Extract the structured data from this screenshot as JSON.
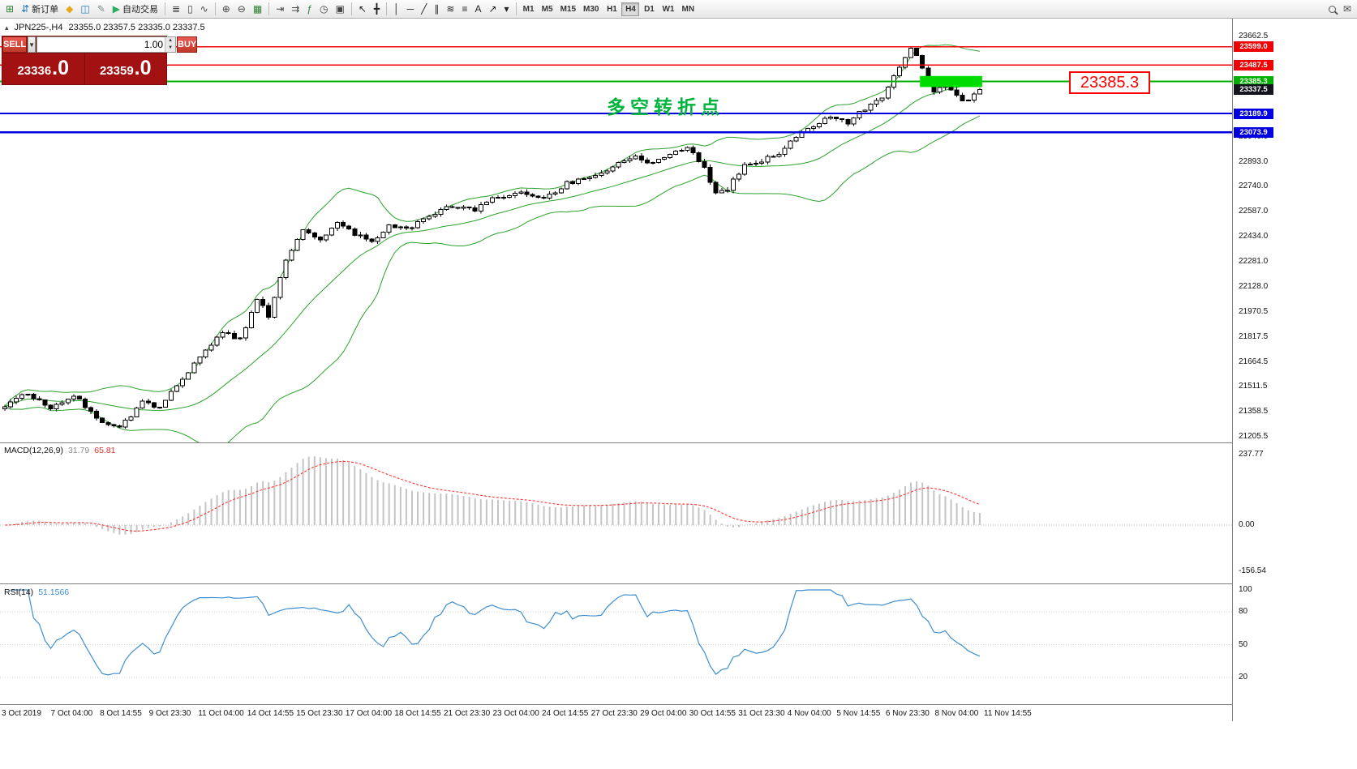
{
  "chart": {
    "symbol_period": "JPN225-,H4",
    "ohlc_text": "23355.0 23357.5 23335.0 23337.5",
    "collapse_icon": "▴",
    "annotation": {
      "text": "多空转折点",
      "color": "#00b43c"
    },
    "callout": {
      "text": "23385.3",
      "color": "#ff0000"
    }
  },
  "trade_panel": {
    "sell_label": "SELL",
    "buy_label": "BUY",
    "volume": "1.00",
    "sell_price_main": "23336",
    "sell_price_big": ".0",
    "buy_price_main": "23359",
    "buy_price_big": ".0"
  },
  "toolbar": {
    "items": [
      {
        "type": "btn",
        "name": "new-chart-button",
        "glyph": "⊞",
        "color": "#2e7d32"
      },
      {
        "type": "btn",
        "name": "new-order-button",
        "glyph": "⇵",
        "color": "#1f77b4",
        "label": "新订单"
      },
      {
        "type": "btn",
        "name": "favorites-button",
        "glyph": "◆",
        "color": "#e6a817"
      },
      {
        "type": "btn",
        "name": "terminal-button",
        "glyph": "◫",
        "color": "#2980b9"
      },
      {
        "type": "btn",
        "name": "metaeditor-button",
        "glyph": "✎",
        "color": "#7f8c8d"
      },
      {
        "type": "btn",
        "name": "autotrading-button",
        "glyph": "▶",
        "color": "#27ae60",
        "label": "自动交易"
      },
      {
        "type": "sep"
      },
      {
        "type": "btn",
        "name": "bar-chart-button",
        "glyph": "≣",
        "color": "#444"
      },
      {
        "type": "btn",
        "name": "candlestick-button",
        "glyph": "▯",
        "color": "#444"
      },
      {
        "type": "btn",
        "name": "line-chart-button",
        "glyph": "∿",
        "color": "#444"
      },
      {
        "type": "sep"
      },
      {
        "type": "btn",
        "name": "zoom-in-button",
        "glyph": "⊕",
        "color": "#444"
      },
      {
        "type": "btn",
        "name": "zoom-out-button",
        "glyph": "⊖",
        "color": "#444"
      },
      {
        "type": "btn",
        "name": "tile-windows-button",
        "glyph": "▦",
        "color": "#2e7d32"
      },
      {
        "type": "sep"
      },
      {
        "type": "btn",
        "name": "chart-shift-button",
        "glyph": "⇥",
        "color": "#444"
      },
      {
        "type": "btn",
        "name": "auto-scroll-button",
        "glyph": "⇉",
        "color": "#444"
      },
      {
        "type": "btn",
        "name": "indicators-button",
        "glyph": "ƒ",
        "color": "#2e7d32"
      },
      {
        "type": "btn",
        "name": "periods-button",
        "glyph": "◷",
        "color": "#444"
      },
      {
        "type": "btn",
        "name": "templates-button",
        "glyph": "▣",
        "color": "#444"
      },
      {
        "type": "sep"
      },
      {
        "type": "btn",
        "name": "cursor-button",
        "glyph": "↖",
        "color": "#222"
      },
      {
        "type": "btn",
        "name": "crosshair-button",
        "glyph": "╋",
        "color": "#222"
      },
      {
        "type": "sep"
      },
      {
        "type": "btn",
        "name": "vertical-line-button",
        "glyph": "│",
        "color": "#222"
      },
      {
        "type": "btn",
        "name": "horizontal-line-button",
        "glyph": "─",
        "color": "#222"
      },
      {
        "type": "btn",
        "name": "trendline-button",
        "glyph": "╱",
        "color": "#222"
      },
      {
        "type": "btn",
        "name": "channel-button",
        "glyph": "∥",
        "color": "#222"
      },
      {
        "type": "btn",
        "name": "fibonacci-button",
        "glyph": "≋",
        "color": "#222"
      },
      {
        "type": "btn",
        "name": "shapes-button",
        "glyph": "≡",
        "color": "#222"
      },
      {
        "type": "btn",
        "name": "text-button",
        "glyph": "A",
        "color": "#222"
      },
      {
        "type": "btn",
        "name": "arrows-button",
        "glyph": "↗",
        "color": "#222"
      },
      {
        "type": "btn",
        "name": "objects-dropdown",
        "glyph": "▾",
        "color": "#222"
      },
      {
        "type": "sep"
      },
      {
        "type": "tf",
        "name": "tf-m1",
        "label": "M1"
      },
      {
        "type": "tf",
        "name": "tf-m5",
        "label": "M5"
      },
      {
        "type": "tf",
        "name": "tf-m15",
        "label": "M15"
      },
      {
        "type": "tf",
        "name": "tf-m30",
        "label": "M30"
      },
      {
        "type": "tf",
        "name": "tf-h1",
        "label": "H1"
      },
      {
        "type": "tf",
        "name": "tf-h4",
        "label": "H4",
        "active": true
      },
      {
        "type": "tf",
        "name": "tf-d1",
        "label": "D1"
      },
      {
        "type": "tf",
        "name": "tf-w1",
        "label": "W1"
      },
      {
        "type": "tf",
        "name": "tf-mn",
        "label": "MN"
      }
    ],
    "right_items": [
      {
        "type": "btn",
        "name": "search-button",
        "glyph": "MAG",
        "color": "#444"
      },
      {
        "type": "btn",
        "name": "chat-button",
        "glyph": "✉",
        "color": "#444"
      }
    ]
  },
  "chart_data": {
    "type": "candlestick",
    "symbol": "JPN225-",
    "timeframe": "H4",
    "current_bar": {
      "open": 23355.0,
      "high": 23357.5,
      "low": 23335.0,
      "close": 23337.5
    },
    "num_candles": 171,
    "price_axis": {
      "min": 21205.5,
      "max": 23662.5,
      "tick_labels": [
        "23662.5",
        "23046.0",
        "22893.0",
        "22740.0",
        "22587.0",
        "22434.0",
        "22281.0",
        "22128.0",
        "21970.5",
        "21817.5",
        "21664.5",
        "21511.5",
        "21358.5",
        "21205.5"
      ]
    },
    "current_price": {
      "value": 23337.5,
      "label": "23337.5",
      "badge_bg": "#14141e"
    },
    "levels": [
      {
        "price": 23599.0,
        "color": "#f00000",
        "width": 1.4,
        "badge": "23599.0"
      },
      {
        "price": 23487.5,
        "color": "#f00000",
        "width": 1.4,
        "badge": "23487.5"
      },
      {
        "price": 23385.3,
        "color": "#00b000",
        "width": 2,
        "badge": "23385.3"
      },
      {
        "price": 23189.9,
        "color": "#0000e0",
        "width": 2.4,
        "badge": "23189.9"
      },
      {
        "price": 23073.9,
        "color": "#0000e0",
        "width": 2.4,
        "badge": "23073.9"
      }
    ],
    "zone": {
      "start_index": 160,
      "end_index": 171,
      "price_top": 23420,
      "price_bottom": 23352,
      "color": "#00dc00"
    },
    "bollinger": {
      "period": 20,
      "deviation": 2,
      "color": "#2aa22a"
    },
    "macd": {
      "label": "MACD(12,26,9)",
      "value": "31.79",
      "signal": "65.81",
      "axis_labels": [
        "237.77",
        "0.00",
        "-156.54"
      ],
      "bar_color": "#c4c4c4",
      "signal_color": "#ff3434"
    },
    "rsi": {
      "label": "RSI(14)",
      "value": "51.1566",
      "axis_labels": [
        "100",
        "80",
        "50",
        "20"
      ],
      "level_lines": [
        80,
        50,
        20
      ],
      "line_color": "#3e8ed0"
    },
    "anchors": {
      "indices": [
        0,
        4,
        8,
        12,
        16,
        20,
        24,
        27,
        30,
        34,
        38,
        41,
        44,
        46,
        49,
        52,
        55,
        58,
        61,
        64,
        67,
        70,
        74,
        78,
        82,
        86,
        90,
        94,
        98,
        102,
        106,
        110,
        113,
        116,
        119,
        122,
        124,
        126,
        129,
        132,
        135,
        138,
        141,
        144,
        147,
        150,
        153,
        156,
        158,
        160,
        162,
        164,
        166,
        168,
        170
      ],
      "prices": [
        21400,
        21470,
        21380,
        21460,
        21320,
        21260,
        21420,
        21380,
        21520,
        21700,
        21850,
        21800,
        22050,
        21950,
        22300,
        22480,
        22420,
        22520,
        22450,
        22400,
        22500,
        22480,
        22560,
        22620,
        22600,
        22680,
        22700,
        22660,
        22760,
        22800,
        22860,
        22930,
        22880,
        22950,
        22980,
        22860,
        22700,
        22720,
        22880,
        22900,
        22950,
        23050,
        23120,
        23180,
        23130,
        23220,
        23280,
        23480,
        23595,
        23480,
        23330,
        23380,
        23300,
        23260,
        23337.5
      ]
    },
    "time_labels": [
      "3 Oct 2019",
      "7 Oct 04:00",
      "8 Oct 14:55",
      "9 Oct 23:30",
      "11 Oct 04:00",
      "14 Oct 14:55",
      "15 Oct 23:30",
      "17 Oct 04:00",
      "18 Oct 14:55",
      "21 Oct 23:30",
      "23 Oct 04:00",
      "24 Oct 14:55",
      "27 Oct 23:30",
      "29 Oct 04:00",
      "30 Oct 14:55",
      "31 Oct 23:30",
      "4 Nov 04:00",
      "5 Nov 14:55",
      "6 Nov 23:30",
      "8 Nov 04:00",
      "11 Nov 14:55"
    ]
  }
}
